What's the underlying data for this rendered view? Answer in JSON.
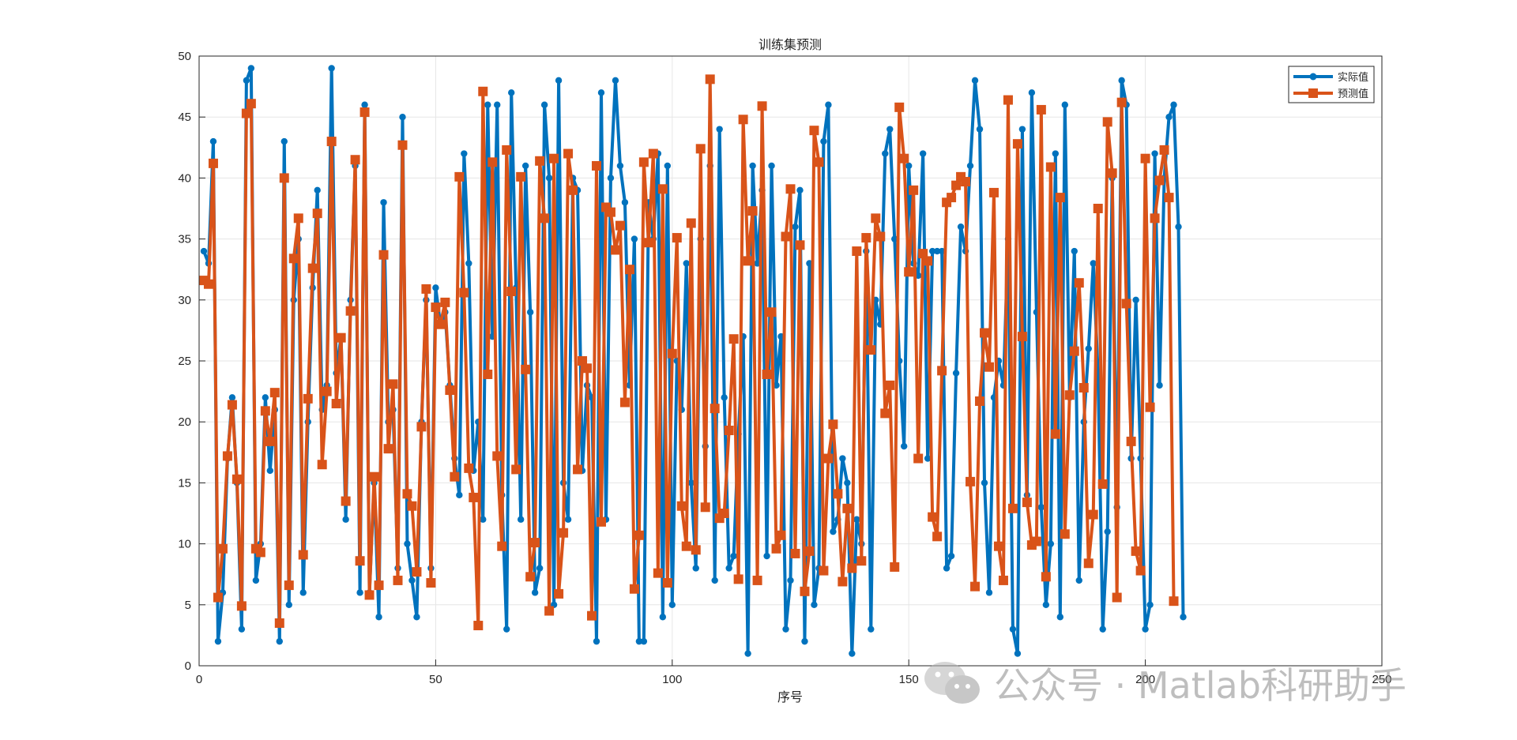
{
  "chart_data": {
    "type": "line",
    "title": "训练集预测",
    "xlabel": "序号",
    "ylabel": "",
    "xlim": [
      0,
      250
    ],
    "ylim": [
      0,
      50
    ],
    "xticks": [
      0,
      50,
      100,
      150,
      200,
      250
    ],
    "yticks": [
      0,
      5,
      10,
      15,
      20,
      25,
      30,
      35,
      40,
      45,
      50
    ],
    "grid": true,
    "legend_position": "top-right",
    "series": [
      {
        "name": "实际值",
        "color": "#0072BD",
        "marker": "circle",
        "values": [
          34,
          33,
          43,
          2,
          6,
          17,
          22,
          15,
          3,
          48,
          49,
          7,
          10,
          22,
          16,
          21,
          2,
          43,
          5,
          30,
          35,
          6,
          20,
          31,
          39,
          21,
          23,
          49,
          24,
          27,
          12,
          30,
          41,
          6,
          46,
          6,
          15,
          4,
          38,
          20,
          21,
          8,
          45,
          10,
          7,
          4,
          20,
          30,
          8,
          31,
          28,
          29,
          23,
          17,
          14,
          42,
          33,
          16,
          20,
          12,
          46,
          27,
          46,
          14,
          3,
          47,
          31,
          12,
          41,
          29,
          6,
          8,
          46,
          40,
          5,
          48,
          15,
          12,
          40,
          39,
          16,
          23,
          22,
          2,
          47,
          12,
          40,
          48,
          41,
          38,
          23,
          35,
          2,
          2,
          38,
          35,
          42,
          4,
          41,
          5,
          25,
          21,
          33,
          15,
          8,
          35,
          18,
          41,
          7,
          44,
          22,
          8,
          9,
          19,
          27,
          1,
          41,
          33,
          39,
          9,
          41,
          23,
          27,
          3,
          7,
          36,
          39,
          2,
          33,
          5,
          8,
          43,
          46,
          11,
          12,
          17,
          15,
          1,
          12,
          10,
          34,
          3,
          30,
          28,
          42,
          44,
          35,
          25,
          18,
          41,
          33,
          32,
          42,
          17,
          34,
          34,
          34,
          8,
          9,
          24,
          36,
          34,
          41,
          48,
          44,
          15,
          6,
          22,
          25,
          23,
          35,
          3,
          1,
          44,
          14,
          47,
          29,
          13,
          5,
          10,
          42,
          4,
          46,
          22,
          34,
          7,
          20,
          26,
          33,
          24,
          3,
          11,
          40,
          13,
          48,
          46,
          17,
          30,
          17,
          3,
          5,
          42,
          23,
          40,
          45,
          46,
          36,
          4
        ],
        "x_start": 1
      },
      {
        "name": "预测值",
        "color": "#D95319",
        "marker": "square",
        "values": [
          31.6,
          31.3,
          41.2,
          5.6,
          9.6,
          17.2,
          21.4,
          15.3,
          4.9,
          45.3,
          46.1,
          9.6,
          9.3,
          20.9,
          18.4,
          22.4,
          3.5,
          40,
          6.6,
          33.4,
          36.7,
          9.1,
          21.9,
          32.6,
          37.1,
          16.5,
          22.5,
          43,
          21.5,
          26.9,
          13.5,
          29.1,
          41.5,
          8.6,
          45.4,
          5.8,
          15.5,
          6.6,
          33.7,
          17.8,
          23.1,
          7,
          42.7,
          14.1,
          13.1,
          7.7,
          19.6,
          30.9,
          6.8,
          29.4,
          28,
          29.8,
          22.6,
          15.5,
          40.1,
          30.6,
          16.2,
          13.8,
          3.3,
          47.1,
          23.9,
          41.3,
          17.2,
          9.8,
          42.3,
          30.7,
          16.1,
          40.1,
          24.3,
          7.3,
          10.1,
          41.4,
          36.7,
          4.5,
          41.6,
          5.9,
          10.9,
          42,
          39,
          16.1,
          25,
          24.4,
          4.1,
          41,
          11.8,
          37.6,
          37.2,
          34.1,
          36.1,
          21.6,
          32.5,
          6.3,
          10.7,
          41.3,
          34.7,
          42,
          7.6,
          39.1,
          6.8,
          25.6,
          35.1,
          13.1,
          9.8,
          36.3,
          9.5,
          42.4,
          13,
          48.1,
          21.1,
          12.1,
          12.5,
          19.3,
          26.8,
          7.1,
          44.8,
          33.2,
          37.3,
          7,
          45.9,
          23.9,
          29,
          9.6,
          10.7,
          35.2,
          39.1,
          9.2,
          34.5,
          6.1,
          9.4,
          43.9,
          41.3,
          7.8,
          17,
          19.8,
          14.1,
          6.9,
          12.9,
          8,
          34,
          8.6,
          35.1,
          25.9,
          36.7,
          35.2,
          20.7,
          23,
          8.1,
          45.8,
          41.6,
          32.3,
          39,
          17,
          33.8,
          33.2,
          12.2,
          10.6,
          24.2,
          38,
          38.4,
          39.4,
          40.1,
          39.7,
          15.1,
          6.5,
          21.7,
          27.3,
          24.5,
          38.8,
          9.8,
          7,
          46.4,
          12.9,
          42.8,
          27,
          13.4,
          9.9,
          10.2,
          45.6,
          7.3,
          40.9,
          19,
          38.4,
          10.8,
          22.2,
          25.8,
          31.4,
          22.8,
          8.4,
          12.4,
          37.5,
          14.9,
          44.6,
          40.4,
          5.6,
          46.2,
          29.7,
          18.4,
          9.4,
          7.8,
          41.6,
          21.2,
          36.7,
          39.8,
          42.3,
          38.4,
          5.3
        ],
        "x_start": 1
      }
    ]
  },
  "watermark": {
    "text": "公众号 · Matlab科研助手",
    "icon": "wechat-icon"
  }
}
